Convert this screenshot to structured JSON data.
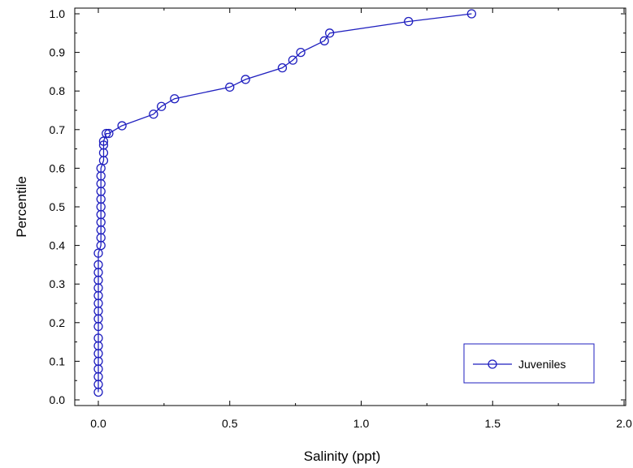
{
  "chart_data": {
    "type": "line",
    "title": "",
    "xlabel": "Salinity (ppt)",
    "ylabel": "Percentile",
    "xlim": [
      0.0,
      2.0
    ],
    "ylim": [
      0.0,
      1.0
    ],
    "x_ticks": [
      "0.0",
      "0.5",
      "1.0",
      "1.5",
      "2.0"
    ],
    "y_ticks": [
      "0.0",
      "0.1",
      "0.2",
      "0.3",
      "0.4",
      "0.5",
      "0.6",
      "0.7",
      "0.8",
      "0.9",
      "1.0"
    ],
    "grid": false,
    "legend_position": "bottom-right",
    "color": "#1f1fbf",
    "series": [
      {
        "name": "Juveniles",
        "marker": "circle",
        "x": [
          0.0,
          0.0,
          0.0,
          0.0,
          0.0,
          0.0,
          0.0,
          0.0,
          0.0,
          0.0,
          0.0,
          0.0,
          0.0,
          0.0,
          0.0,
          0.0,
          0.0,
          0.0,
          0.01,
          0.01,
          0.01,
          0.01,
          0.01,
          0.01,
          0.01,
          0.01,
          0.01,
          0.01,
          0.01,
          0.02,
          0.02,
          0.02,
          0.02,
          0.03,
          0.04,
          0.09,
          0.21,
          0.24,
          0.29,
          0.5,
          0.56,
          0.7,
          0.74,
          0.77,
          0.86,
          0.88,
          1.18,
          1.42
        ],
        "y": [
          0.02,
          0.04,
          0.06,
          0.08,
          0.1,
          0.12,
          0.14,
          0.16,
          0.19,
          0.21,
          0.23,
          0.25,
          0.27,
          0.29,
          0.31,
          0.33,
          0.35,
          0.38,
          0.4,
          0.42,
          0.44,
          0.46,
          0.48,
          0.5,
          0.52,
          0.54,
          0.56,
          0.58,
          0.6,
          0.62,
          0.64,
          0.66,
          0.67,
          0.69,
          0.69,
          0.71,
          0.74,
          0.76,
          0.78,
          0.81,
          0.83,
          0.86,
          0.88,
          0.9,
          0.93,
          0.95,
          0.98,
          1.0
        ]
      }
    ]
  }
}
